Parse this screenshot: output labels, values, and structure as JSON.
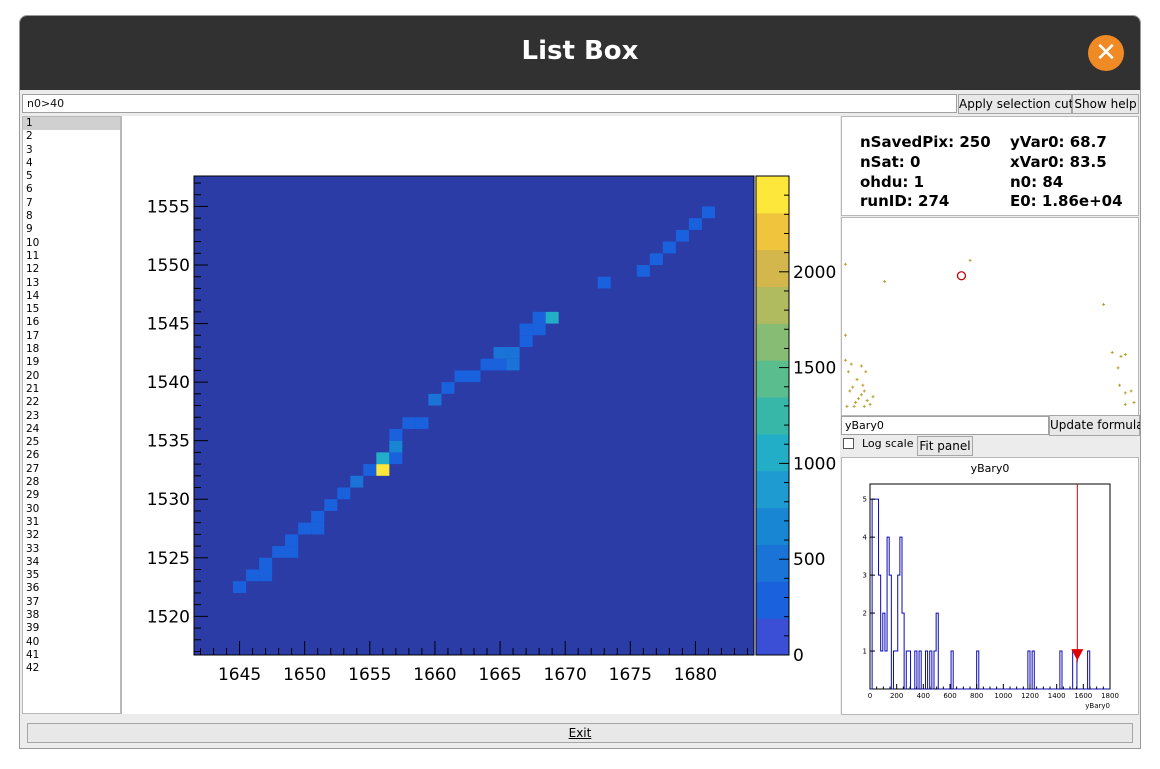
{
  "window": {
    "title": "List Box",
    "close_label": "✕",
    "close_color": "#f08a24"
  },
  "toolbar": {
    "selection_input_value": "n0>40",
    "apply_label": "Apply selection cuts",
    "help_label": "Show help"
  },
  "list": {
    "items": [
      "1",
      "2",
      "3",
      "4",
      "5",
      "6",
      "7",
      "8",
      "9",
      "10",
      "11",
      "12",
      "13",
      "14",
      "15",
      "16",
      "17",
      "18",
      "19",
      "20",
      "21",
      "22",
      "23",
      "24",
      "25",
      "26",
      "27",
      "28",
      "29",
      "30",
      "31",
      "32",
      "33",
      "34",
      "35",
      "36",
      "37",
      "38",
      "39",
      "40",
      "41",
      "42"
    ],
    "selected_index": 0
  },
  "info": {
    "nSavedPix": "nSavedPix: 250",
    "yVar0": "yVar0: 68.7",
    "nSat": "nSat: 0",
    "xVar0": "xVar0: 83.5",
    "ohdu": "ohdu: 1",
    "n0": "n0: 84",
    "runID": "runID: 274",
    "E0": "E0: 1.86e+04"
  },
  "formula": {
    "input_value": "yBary0",
    "update_label": "Update formula",
    "log_scale_label": "Log scale",
    "log_scale_checked": false,
    "fit_panel_label": "Fit panel"
  },
  "exit_label": "Exit",
  "chart_data": [
    {
      "type": "heatmap",
      "x_ticks": [
        "1645",
        "1650",
        "1655",
        "1660",
        "1665",
        "1670",
        "1675",
        "1680"
      ],
      "y_ticks": [
        "1520",
        "1525",
        "1530",
        "1535",
        "1540",
        "1545",
        "1550",
        "1555"
      ],
      "xlim": [
        1641.5,
        1684.5
      ],
      "ylim": [
        1516.7,
        1557.6
      ],
      "z_ticks": [
        "0",
        "500",
        "1000",
        "1500",
        "2000"
      ],
      "zlim": [
        0,
        2500
      ],
      "background_color": "#2b3ca7",
      "colorscale": [
        "#3a4fd6",
        "#1a62dd",
        "#1a74d8",
        "#1986d4",
        "#1e9bd1",
        "#23aec8",
        "#37b7a8",
        "#5abd8e",
        "#86bc73",
        "#b0ba5f",
        "#d3b74c",
        "#f0c43c",
        "#fce73a"
      ],
      "cells": [
        {
          "x": 1645,
          "y": 1522.5,
          "z": 280
        },
        {
          "x": 1646,
          "y": 1523.5,
          "z": 300
        },
        {
          "x": 1647,
          "y": 1523.5,
          "z": 280
        },
        {
          "x": 1647,
          "y": 1524.5,
          "z": 300
        },
        {
          "x": 1648,
          "y": 1525.5,
          "z": 320
        },
        {
          "x": 1649,
          "y": 1525.5,
          "z": 280
        },
        {
          "x": 1649,
          "y": 1526.5,
          "z": 320
        },
        {
          "x": 1650,
          "y": 1527.5,
          "z": 300
        },
        {
          "x": 1651,
          "y": 1527.5,
          "z": 280
        },
        {
          "x": 1651,
          "y": 1528.5,
          "z": 320
        },
        {
          "x": 1652,
          "y": 1529.5,
          "z": 300
        },
        {
          "x": 1653,
          "y": 1530.5,
          "z": 380
        },
        {
          "x": 1654,
          "y": 1531.5,
          "z": 430
        },
        {
          "x": 1655,
          "y": 1532.5,
          "z": 300
        },
        {
          "x": 1656,
          "y": 1532.5,
          "z": 2450
        },
        {
          "x": 1656,
          "y": 1533.5,
          "z": 1100
        },
        {
          "x": 1657,
          "y": 1533.5,
          "z": 360
        },
        {
          "x": 1657,
          "y": 1534.5,
          "z": 700
        },
        {
          "x": 1657,
          "y": 1535.5,
          "z": 300
        },
        {
          "x": 1658,
          "y": 1536.5,
          "z": 320
        },
        {
          "x": 1659,
          "y": 1536.5,
          "z": 280
        },
        {
          "x": 1660,
          "y": 1538.5,
          "z": 430
        },
        {
          "x": 1661,
          "y": 1539.5,
          "z": 300
        },
        {
          "x": 1662,
          "y": 1540.5,
          "z": 350
        },
        {
          "x": 1663,
          "y": 1540.5,
          "z": 300
        },
        {
          "x": 1664,
          "y": 1541.5,
          "z": 320
        },
        {
          "x": 1665,
          "y": 1541.5,
          "z": 300
        },
        {
          "x": 1665,
          "y": 1542.5,
          "z": 430
        },
        {
          "x": 1666,
          "y": 1542.5,
          "z": 420
        },
        {
          "x": 1666,
          "y": 1541.5,
          "z": 430
        },
        {
          "x": 1667,
          "y": 1543.5,
          "z": 300
        },
        {
          "x": 1667,
          "y": 1544.5,
          "z": 300
        },
        {
          "x": 1668,
          "y": 1544.5,
          "z": 320
        },
        {
          "x": 1668,
          "y": 1545.5,
          "z": 380
        },
        {
          "x": 1669,
          "y": 1545.5,
          "z": 1100
        },
        {
          "x": 1673,
          "y": 1548.5,
          "z": 260
        },
        {
          "x": 1676,
          "y": 1549.5,
          "z": 280
        },
        {
          "x": 1677,
          "y": 1550.5,
          "z": 300
        },
        {
          "x": 1678,
          "y": 1551.5,
          "z": 280
        },
        {
          "x": 1679,
          "y": 1552.5,
          "z": 300
        },
        {
          "x": 1680,
          "y": 1553.5,
          "z": 280
        },
        {
          "x": 1681,
          "y": 1554.5,
          "z": 320
        }
      ]
    },
    {
      "type": "scatter",
      "marker_color": "#b8a23a",
      "highlight_color": "#c00000",
      "xlim": [
        0,
        100
      ],
      "ylim": [
        0,
        100
      ],
      "points": [
        [
          0.5,
          41
        ],
        [
          0.5,
          78
        ],
        [
          0.5,
          28
        ],
        [
          1.5,
          22
        ],
        [
          2.5,
          26
        ],
        [
          3,
          14
        ],
        [
          4.5,
          18
        ],
        [
          5,
          8
        ],
        [
          6,
          10
        ],
        [
          4,
          6
        ],
        [
          7,
          4
        ],
        [
          8,
          7
        ],
        [
          9,
          5
        ],
        [
          10,
          9
        ],
        [
          6.5,
          15
        ],
        [
          7.5,
          22
        ],
        [
          6,
          25
        ],
        [
          2,
          12
        ],
        [
          1,
          4
        ],
        [
          3.5,
          4
        ],
        [
          7,
          12
        ],
        [
          14,
          69
        ],
        [
          43.5,
          80
        ],
        [
          89.5,
          57
        ],
        [
          92.5,
          32
        ],
        [
          94.5,
          24
        ],
        [
          97,
          31
        ],
        [
          95.5,
          30
        ],
        [
          95,
          15
        ],
        [
          97,
          11
        ],
        [
          100,
          6
        ],
        [
          97,
          5
        ],
        [
          99,
          12
        ]
      ],
      "highlight_point": [
        40.5,
        72
      ]
    },
    {
      "type": "bar",
      "title": "yBary0",
      "xlabel": "yBary0",
      "xlim": [
        0,
        1800
      ],
      "ylim": [
        0,
        5.4
      ],
      "x_ticks": [
        "0",
        "200",
        "400",
        "600",
        "800",
        "1000",
        "1200",
        "1400",
        "1600",
        "1800"
      ],
      "y_ticks": [
        "1",
        "2",
        "3",
        "4",
        "5"
      ],
      "bin_width": 16,
      "bins": [
        [
          16,
          5
        ],
        [
          32,
          5
        ],
        [
          48,
          5
        ],
        [
          64,
          3
        ],
        [
          80,
          1
        ],
        [
          96,
          2
        ],
        [
          112,
          1
        ],
        [
          128,
          4
        ],
        [
          144,
          3
        ],
        [
          176,
          1
        ],
        [
          192,
          1
        ],
        [
          208,
          3
        ],
        [
          224,
          4
        ],
        [
          240,
          2
        ],
        [
          272,
          1
        ],
        [
          288,
          1
        ],
        [
          336,
          1
        ],
        [
          368,
          1
        ],
        [
          416,
          1
        ],
        [
          448,
          1
        ],
        [
          480,
          1
        ],
        [
          496,
          2
        ],
        [
          608,
          1
        ],
        [
          800,
          1
        ],
        [
          1184,
          1
        ],
        [
          1216,
          1
        ],
        [
          1424,
          1
        ],
        [
          1520,
          1
        ],
        [
          1536,
          1
        ],
        [
          1632,
          1
        ]
      ],
      "marker_x": 1555,
      "marker_color": "#e00000"
    }
  ]
}
